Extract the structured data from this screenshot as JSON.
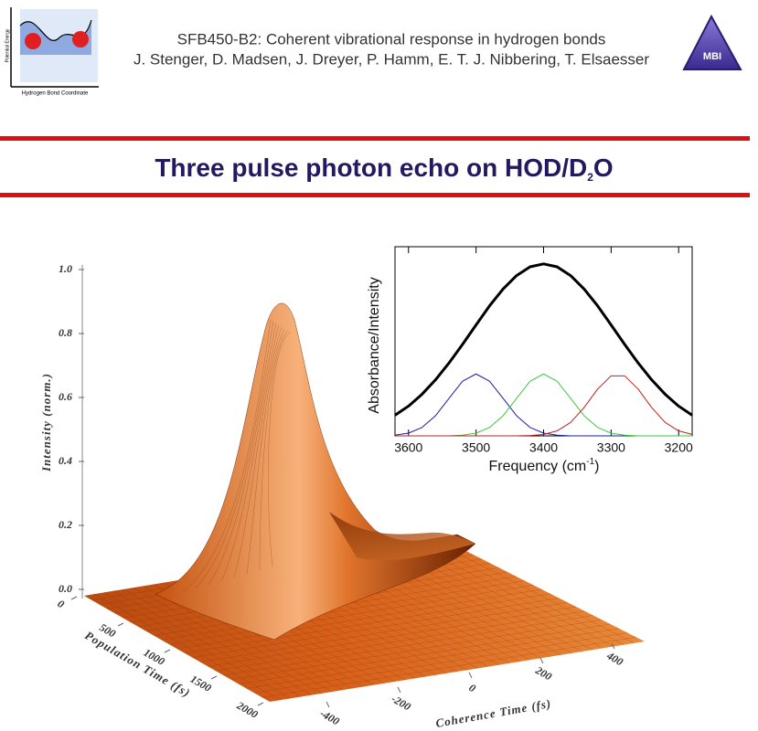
{
  "header": {
    "subtitle": "SFB450-B2: Coherent vibrational response in hydrogen bonds",
    "authors": "J. Stenger, D. Madsen, J. Dreyer, P. Hamm, E. T. J. Nibbering, T. Elsaesser",
    "logo_left": {
      "y_label": "Potential Energy",
      "x_label": "Hydrogen Bond Coordinate"
    },
    "logo_right": "MBI"
  },
  "title": {
    "text": "Three pulse photon echo on HOD/D",
    "subscript": "2",
    "suffix": "O"
  },
  "chart_data": [
    {
      "type": "surface",
      "zlabel": "Intensity (norm.)",
      "ylabel": "Population Time (fs)",
      "xlabel": "Coherence Time (fs)",
      "zlim": [
        0,
        1
      ],
      "zticks": [
        {
          "value": 0,
          "label": "0.0"
        },
        {
          "value": 0.2,
          "label": "0.2"
        },
        {
          "value": 0.4,
          "label": "0.4"
        },
        {
          "value": 0.6,
          "label": "0.6"
        },
        {
          "value": 0.8,
          "label": "0.8"
        },
        {
          "value": 1,
          "label": "1.0"
        }
      ],
      "ylim": [
        0,
        2000
      ],
      "yticks": [
        0,
        500,
        1000,
        1500,
        2000
      ],
      "xlim": [
        -400,
        400
      ],
      "xticks": [
        -400,
        -200,
        0,
        200,
        400
      ]
    },
    {
      "type": "line",
      "ylabel": "Absorbance/Intensity",
      "xlabel": {
        "text": "Frequency (cm",
        "superscript": "-1",
        "suffix": ")"
      },
      "xlim": [
        3620,
        3180
      ],
      "xticks": [
        3600,
        3500,
        3400,
        3300,
        3200
      ],
      "ylim": [
        0,
        1.1
      ],
      "x": [
        3620,
        3600,
        3580,
        3560,
        3540,
        3520,
        3500,
        3480,
        3460,
        3440,
        3420,
        3400,
        3380,
        3360,
        3340,
        3320,
        3300,
        3280,
        3260,
        3240,
        3220,
        3200,
        3180
      ],
      "series": [
        {
          "color": "#000000",
          "width": 3,
          "values": [
            0.12,
            0.173,
            0.242,
            0.326,
            0.424,
            0.532,
            0.645,
            0.756,
            0.854,
            0.932,
            0.983,
            1.0,
            0.983,
            0.932,
            0.854,
            0.756,
            0.645,
            0.532,
            0.424,
            0.326,
            0.242,
            0.173,
            0.12
          ]
        },
        {
          "color": "#1c1ca0",
          "width": 1,
          "values": [
            0.004,
            0.016,
            0.049,
            0.117,
            0.218,
            0.318,
            0.36,
            0.318,
            0.218,
            0.117,
            0.049,
            0.016,
            0.004,
            0,
            0,
            0,
            0,
            0,
            0,
            0,
            0,
            0,
            0
          ]
        },
        {
          "color": "#3cc83c",
          "width": 1,
          "values": [
            0,
            0,
            0,
            0,
            0,
            0.004,
            0.016,
            0.049,
            0.117,
            0.218,
            0.318,
            0.36,
            0.318,
            0.218,
            0.117,
            0.049,
            0.016,
            0.004,
            0,
            0,
            0,
            0,
            0
          ]
        },
        {
          "color": "#c02020",
          "width": 1,
          "values": [
            0,
            0,
            0,
            0,
            0,
            0,
            0,
            0,
            0,
            0,
            0.002,
            0.008,
            0.029,
            0.078,
            0.165,
            0.272,
            0.349,
            0.349,
            0.272,
            0.165,
            0.078,
            0.029,
            0.008
          ]
        }
      ]
    }
  ]
}
